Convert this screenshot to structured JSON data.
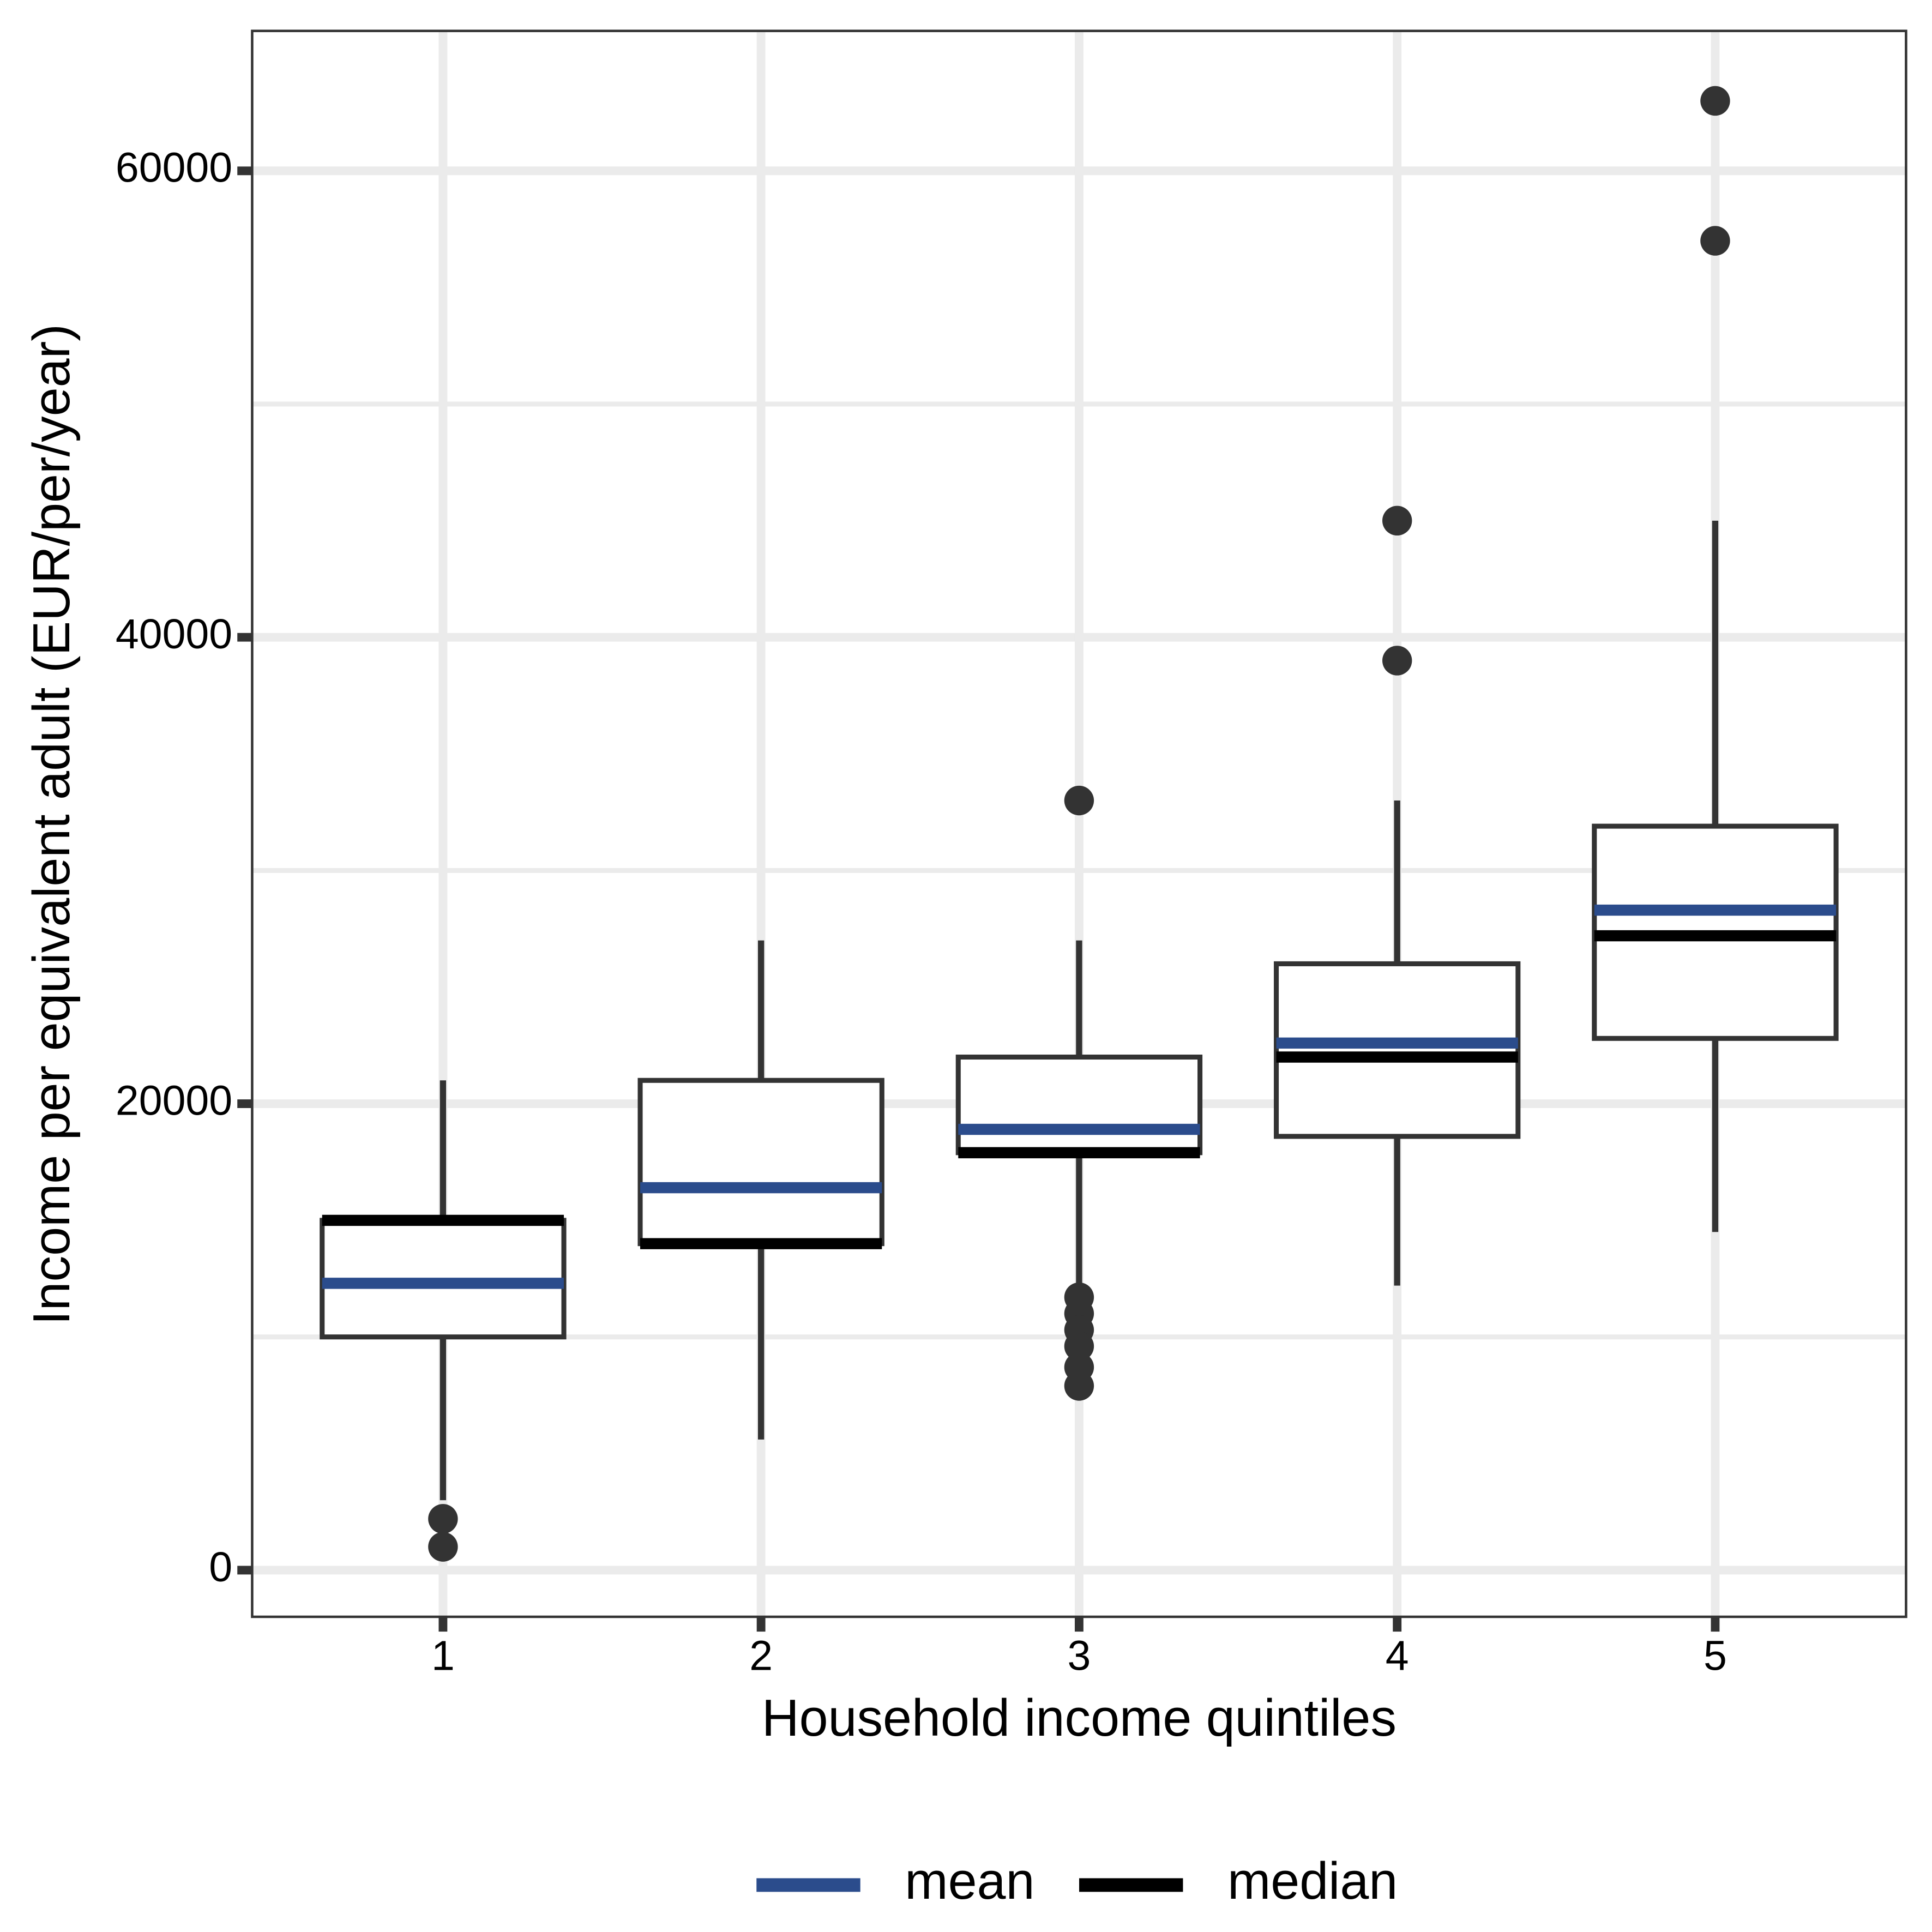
{
  "chart_data": {
    "type": "boxplot",
    "x_label": "Household income quintiles",
    "y_label": "Income per equivalent adult (EUR/per/year)",
    "categories": [
      "1",
      "2",
      "3",
      "4",
      "5"
    ],
    "boxes": [
      {
        "whisker_low": 3000,
        "q1": 10000,
        "median": 15000,
        "q3": 15000,
        "whisker_high": 21000,
        "mean": 12300,
        "outliers": [
          2200,
          1000
        ]
      },
      {
        "whisker_low": 5600,
        "q1": 14000,
        "median": 14000,
        "q3": 21000,
        "whisker_high": 27000,
        "mean": 16400,
        "outliers": []
      },
      {
        "whisker_low": 12000,
        "q1": 17900,
        "median": 17900,
        "q3": 22000,
        "whisker_high": 27000,
        "mean": 18900,
        "outliers": [
          33000,
          11700,
          11000,
          10300,
          9600,
          8700,
          7900
        ]
      },
      {
        "whisker_low": 12200,
        "q1": 18600,
        "median": 22000,
        "q3": 26000,
        "whisker_high": 33000,
        "mean": 22600,
        "outliers": [
          45000,
          39000
        ]
      },
      {
        "whisker_low": 14500,
        "q1": 22800,
        "median": 27200,
        "q3": 31900,
        "whisker_high": 45000,
        "mean": 28300,
        "outliers": [
          63000,
          57000
        ]
      }
    ],
    "ylim": [
      -2000,
      66000
    ],
    "yticks": [
      0,
      20000,
      40000,
      60000
    ],
    "minor_yticks": [
      10000,
      30000,
      50000
    ],
    "grid": true,
    "legend": {
      "position": "bottom",
      "entries": [
        {
          "name": "mean",
          "color": "#2b4c8c"
        },
        {
          "name": "median",
          "color": "#000000"
        }
      ]
    }
  }
}
